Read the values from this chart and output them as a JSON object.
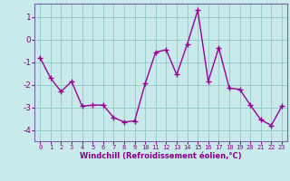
{
  "x": [
    0,
    1,
    2,
    3,
    4,
    5,
    6,
    7,
    8,
    9,
    10,
    11,
    12,
    13,
    14,
    15,
    16,
    17,
    18,
    19,
    20,
    21,
    22,
    23
  ],
  "y": [
    -0.8,
    -1.7,
    -2.3,
    -1.85,
    -2.95,
    -2.9,
    -2.9,
    -3.45,
    -3.65,
    -3.6,
    -1.95,
    -0.55,
    -0.45,
    -1.55,
    -0.2,
    1.3,
    -1.85,
    -0.35,
    -2.15,
    -2.2,
    -2.9,
    -3.55,
    -3.8,
    -2.95
  ],
  "line_color": "#990099",
  "marker": "+",
  "marker_size": 4,
  "marker_lw": 1.0,
  "line_width": 1.0,
  "bg_color": "#c8eaea",
  "grid_color": "#99cccc",
  "xlabel": "Windchill (Refroidissement éolien,°C)",
  "xlabel_color": "#880088",
  "tick_color": "#880088",
  "ylim": [
    -4.5,
    1.6
  ],
  "yticks": [
    -4,
    -3,
    -2,
    -1,
    0,
    1
  ],
  "xlim": [
    -0.5,
    23.5
  ],
  "xticks": [
    0,
    1,
    2,
    3,
    4,
    5,
    6,
    7,
    8,
    9,
    10,
    11,
    12,
    13,
    14,
    15,
    16,
    17,
    18,
    19,
    20,
    21,
    22,
    23
  ],
  "border_color": "#7766aa",
  "xlabel_fontsize": 6.0,
  "xtick_fontsize": 5.0,
  "ytick_fontsize": 6.5
}
